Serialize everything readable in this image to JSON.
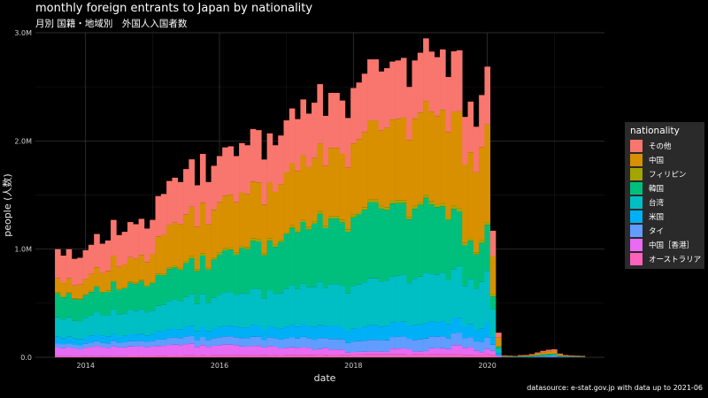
{
  "title": "monthly foreign entrants to Japan by nationality",
  "subtitle": "月別 国籍・地域別　外国人入国者数",
  "caption": "datasource: e-stat.gov.jp with data up to 2021-06",
  "colors": {
    "background": "#000000",
    "grid": "#333333",
    "series": [
      "#F8766D",
      "#D89000",
      "#A3A500",
      "#00BF7D",
      "#00BFC4",
      "#00B0F6",
      "#619CFF",
      "#E76BF3",
      "#FF62BC"
    ]
  },
  "chart_data": {
    "type": "area",
    "stacked": true,
    "xlabel": "date",
    "ylabel": "people (人数)",
    "x_ticks": [
      "2014",
      "2016",
      "2018",
      "2020"
    ],
    "y_ticks": [
      "0.0",
      "1.0M",
      "2.0M",
      "3.0M"
    ],
    "ylim": [
      0,
      3000000
    ],
    "xlim": [
      "2013-04",
      "2021-10"
    ],
    "grid": true,
    "legend": {
      "title": "nationality",
      "position": "right"
    },
    "x": [
      "2013-08",
      "2013-09",
      "2013-10",
      "2013-11",
      "2013-12",
      "2014-01",
      "2014-02",
      "2014-03",
      "2014-04",
      "2014-05",
      "2014-06",
      "2014-07",
      "2014-08",
      "2014-09",
      "2014-10",
      "2014-11",
      "2014-12",
      "2015-01",
      "2015-02",
      "2015-03",
      "2015-04",
      "2015-05",
      "2015-06",
      "2015-07",
      "2015-08",
      "2015-09",
      "2015-10",
      "2015-11",
      "2015-12",
      "2016-01",
      "2016-02",
      "2016-03",
      "2016-04",
      "2016-05",
      "2016-06",
      "2016-07",
      "2016-08",
      "2016-09",
      "2016-10",
      "2016-11",
      "2016-12",
      "2017-01",
      "2017-02",
      "2017-03",
      "2017-04",
      "2017-05",
      "2017-06",
      "2017-07",
      "2017-08",
      "2017-09",
      "2017-10",
      "2017-11",
      "2017-12",
      "2018-01",
      "2018-02",
      "2018-03",
      "2018-04",
      "2018-05",
      "2018-06",
      "2018-07",
      "2018-08",
      "2018-09",
      "2018-10",
      "2018-11",
      "2018-12",
      "2019-01",
      "2019-02",
      "2019-03",
      "2019-04",
      "2019-05",
      "2019-06",
      "2019-07",
      "2019-08",
      "2019-09",
      "2019-10",
      "2019-11",
      "2019-12",
      "2020-01",
      "2020-02",
      "2020-03",
      "2020-04",
      "2020-05",
      "2020-06",
      "2020-07",
      "2020-08",
      "2020-09",
      "2020-10",
      "2020-11",
      "2020-12",
      "2021-01",
      "2021-02",
      "2021-03",
      "2021-04",
      "2021-05",
      "2021-06"
    ],
    "totals": [
      1000000,
      940000,
      1000000,
      910000,
      920000,
      990000,
      1040000,
      1140000,
      1050000,
      1080000,
      1270000,
      1130000,
      1160000,
      1250000,
      1230000,
      1280000,
      1190000,
      1270000,
      1490000,
      1510000,
      1630000,
      1660000,
      1620000,
      1740000,
      1830000,
      1590000,
      1880000,
      1620000,
      1770000,
      1860000,
      1940000,
      1950000,
      1860000,
      1980000,
      1960000,
      2110000,
      2100000,
      1810000,
      2070000,
      1960000,
      2050000,
      2190000,
      2300000,
      2180000,
      2360000,
      2230000,
      2330000,
      2500000,
      2210000,
      2420000,
      2420000,
      2350000,
      2190000,
      2440000,
      2490000,
      2570000,
      2700000,
      2700000,
      2590000,
      2620000,
      2680000,
      2690000,
      2740000,
      2450000,
      2690000,
      2760000,
      2890000,
      2770000,
      2720000,
      2790000,
      2540000,
      2800000,
      2810000,
      2200000,
      2340000,
      2110000,
      2400000,
      2660000,
      1170000,
      230000,
      18000,
      15000,
      13000,
      20000,
      22000,
      30000,
      45000,
      60000,
      70000,
      75000,
      35000,
      22000,
      18000,
      15000,
      14000
    ],
    "series": [
      {
        "name": "その他",
        "share": [
          0.27,
          0.27,
          0.27,
          0.27,
          0.27,
          0.27,
          0.26,
          0.27,
          0.26,
          0.26,
          0.26,
          0.26,
          0.26,
          0.26,
          0.26,
          0.26,
          0.26,
          0.25,
          0.25,
          0.25,
          0.25,
          0.25,
          0.24,
          0.24,
          0.24,
          0.24,
          0.24,
          0.24,
          0.23,
          0.23,
          0.23,
          0.23,
          0.23,
          0.23,
          0.23,
          0.23,
          0.23,
          0.23,
          0.22,
          0.22,
          0.22,
          0.22,
          0.22,
          0.22,
          0.22,
          0.22,
          0.22,
          0.22,
          0.21,
          0.21,
          0.21,
          0.21,
          0.21,
          0.21,
          0.21,
          0.21,
          0.21,
          0.21,
          0.21,
          0.21,
          0.2,
          0.2,
          0.2,
          0.2,
          0.2,
          0.2,
          0.2,
          0.2,
          0.2,
          0.2,
          0.2,
          0.2,
          0.2,
          0.2,
          0.2,
          0.2,
          0.2,
          0.2,
          0.2,
          0.2,
          0.2,
          0.2,
          0.2,
          0.2,
          0.2,
          0.2,
          0.2,
          0.2,
          0.2,
          0.2,
          0.2,
          0.2,
          0.2,
          0.2,
          0.2
        ]
      },
      {
        "name": "中国",
        "share": [
          0.13,
          0.13,
          0.13,
          0.13,
          0.14,
          0.14,
          0.15,
          0.15,
          0.16,
          0.17,
          0.18,
          0.18,
          0.18,
          0.18,
          0.18,
          0.18,
          0.18,
          0.2,
          0.23,
          0.24,
          0.24,
          0.24,
          0.25,
          0.25,
          0.25,
          0.25,
          0.25,
          0.25,
          0.25,
          0.25,
          0.25,
          0.25,
          0.25,
          0.25,
          0.25,
          0.25,
          0.25,
          0.25,
          0.25,
          0.25,
          0.25,
          0.25,
          0.25,
          0.25,
          0.25,
          0.25,
          0.25,
          0.25,
          0.25,
          0.26,
          0.26,
          0.26,
          0.26,
          0.27,
          0.27,
          0.27,
          0.27,
          0.27,
          0.27,
          0.28,
          0.28,
          0.28,
          0.28,
          0.29,
          0.3,
          0.3,
          0.3,
          0.3,
          0.3,
          0.31,
          0.31,
          0.31,
          0.32,
          0.33,
          0.34,
          0.35,
          0.36,
          0.34,
          0.3,
          0.35,
          0.35,
          0.35,
          0.35,
          0.35,
          0.35,
          0.35,
          0.35,
          0.35,
          0.35,
          0.35,
          0.35,
          0.35,
          0.35,
          0.35,
          0.35
        ]
      },
      {
        "name": "フィリピン",
        "share": [
          0.01,
          0.01,
          0.01,
          0.01,
          0.01,
          0.01,
          0.01,
          0.01,
          0.01,
          0.01,
          0.01,
          0.01,
          0.01,
          0.01,
          0.01,
          0.01,
          0.01,
          0.01,
          0.01,
          0.01,
          0.01,
          0.01,
          0.01,
          0.01,
          0.01,
          0.01,
          0.01,
          0.01,
          0.01,
          0.01,
          0.01,
          0.01,
          0.01,
          0.01,
          0.01,
          0.01,
          0.01,
          0.01,
          0.01,
          0.01,
          0.01,
          0.01,
          0.01,
          0.01,
          0.01,
          0.01,
          0.01,
          0.01,
          0.01,
          0.01,
          0.01,
          0.01,
          0.01,
          0.01,
          0.01,
          0.01,
          0.01,
          0.01,
          0.01,
          0.01,
          0.01,
          0.01,
          0.01,
          0.01,
          0.01,
          0.01,
          0.01,
          0.01,
          0.01,
          0.01,
          0.01,
          0.01,
          0.01,
          0.01,
          0.01,
          0.01,
          0.01,
          0.01,
          0.02,
          0.02,
          0.02,
          0.02,
          0.02,
          0.02,
          0.02,
          0.02,
          0.02,
          0.02,
          0.02,
          0.02,
          0.02,
          0.02,
          0.02,
          0.02,
          0.02
        ]
      },
      {
        "name": "韓国",
        "share": [
          0.22,
          0.22,
          0.22,
          0.22,
          0.22,
          0.21,
          0.21,
          0.2,
          0.2,
          0.2,
          0.2,
          0.2,
          0.2,
          0.2,
          0.2,
          0.2,
          0.2,
          0.2,
          0.19,
          0.18,
          0.18,
          0.18,
          0.18,
          0.18,
          0.18,
          0.19,
          0.19,
          0.19,
          0.2,
          0.2,
          0.2,
          0.2,
          0.2,
          0.21,
          0.21,
          0.21,
          0.21,
          0.22,
          0.22,
          0.22,
          0.23,
          0.23,
          0.23,
          0.24,
          0.24,
          0.24,
          0.25,
          0.25,
          0.25,
          0.25,
          0.25,
          0.25,
          0.26,
          0.26,
          0.26,
          0.26,
          0.26,
          0.26,
          0.26,
          0.25,
          0.25,
          0.25,
          0.24,
          0.24,
          0.24,
          0.24,
          0.24,
          0.23,
          0.23,
          0.22,
          0.22,
          0.2,
          0.18,
          0.17,
          0.15,
          0.15,
          0.15,
          0.16,
          0.1,
          0.1,
          0.1,
          0.1,
          0.1,
          0.1,
          0.1,
          0.1,
          0.1,
          0.1,
          0.1,
          0.1,
          0.1,
          0.1,
          0.1,
          0.1,
          0.1
        ]
      },
      {
        "name": "台湾",
        "share": [
          0.18,
          0.18,
          0.18,
          0.18,
          0.18,
          0.18,
          0.18,
          0.18,
          0.18,
          0.18,
          0.18,
          0.18,
          0.18,
          0.18,
          0.18,
          0.18,
          0.18,
          0.17,
          0.16,
          0.16,
          0.16,
          0.16,
          0.16,
          0.16,
          0.16,
          0.16,
          0.16,
          0.16,
          0.16,
          0.16,
          0.16,
          0.16,
          0.16,
          0.16,
          0.16,
          0.16,
          0.16,
          0.16,
          0.16,
          0.16,
          0.16,
          0.16,
          0.16,
          0.16,
          0.16,
          0.16,
          0.16,
          0.16,
          0.16,
          0.16,
          0.16,
          0.16,
          0.16,
          0.16,
          0.16,
          0.16,
          0.16,
          0.16,
          0.16,
          0.16,
          0.16,
          0.16,
          0.16,
          0.16,
          0.16,
          0.16,
          0.16,
          0.16,
          0.16,
          0.16,
          0.16,
          0.16,
          0.17,
          0.17,
          0.18,
          0.18,
          0.18,
          0.18,
          0.22,
          0.15,
          0.15,
          0.15,
          0.15,
          0.15,
          0.15,
          0.15,
          0.15,
          0.15,
          0.15,
          0.15,
          0.15,
          0.15,
          0.15,
          0.15,
          0.15
        ]
      },
      {
        "name": "米国",
        "share": [
          0.06,
          0.06,
          0.06,
          0.06,
          0.06,
          0.06,
          0.06,
          0.06,
          0.06,
          0.06,
          0.05,
          0.05,
          0.05,
          0.05,
          0.05,
          0.05,
          0.05,
          0.05,
          0.05,
          0.05,
          0.05,
          0.05,
          0.05,
          0.05,
          0.05,
          0.05,
          0.05,
          0.05,
          0.05,
          0.05,
          0.05,
          0.05,
          0.05,
          0.05,
          0.05,
          0.05,
          0.05,
          0.05,
          0.05,
          0.05,
          0.05,
          0.05,
          0.05,
          0.05,
          0.05,
          0.05,
          0.05,
          0.05,
          0.05,
          0.05,
          0.05,
          0.05,
          0.05,
          0.05,
          0.05,
          0.05,
          0.05,
          0.05,
          0.05,
          0.05,
          0.05,
          0.05,
          0.05,
          0.05,
          0.05,
          0.05,
          0.05,
          0.05,
          0.05,
          0.05,
          0.05,
          0.05,
          0.05,
          0.05,
          0.05,
          0.05,
          0.05,
          0.05,
          0.06,
          0.07,
          0.07,
          0.07,
          0.07,
          0.07,
          0.07,
          0.07,
          0.07,
          0.07,
          0.07,
          0.07,
          0.07,
          0.07,
          0.07,
          0.07,
          0.07
        ]
      },
      {
        "name": "タイ",
        "share": [
          0.04,
          0.04,
          0.04,
          0.04,
          0.04,
          0.04,
          0.04,
          0.04,
          0.04,
          0.04,
          0.04,
          0.04,
          0.04,
          0.04,
          0.04,
          0.04,
          0.04,
          0.04,
          0.04,
          0.04,
          0.04,
          0.04,
          0.04,
          0.04,
          0.04,
          0.04,
          0.04,
          0.04,
          0.04,
          0.04,
          0.04,
          0.04,
          0.04,
          0.04,
          0.04,
          0.04,
          0.04,
          0.04,
          0.04,
          0.04,
          0.04,
          0.04,
          0.04,
          0.04,
          0.04,
          0.04,
          0.04,
          0.04,
          0.04,
          0.04,
          0.04,
          0.04,
          0.04,
          0.04,
          0.04,
          0.04,
          0.04,
          0.04,
          0.04,
          0.04,
          0.04,
          0.04,
          0.04,
          0.04,
          0.04,
          0.04,
          0.04,
          0.04,
          0.04,
          0.04,
          0.04,
          0.04,
          0.04,
          0.04,
          0.04,
          0.04,
          0.04,
          0.04,
          0.05,
          0.05,
          0.05,
          0.05,
          0.05,
          0.05,
          0.05,
          0.05,
          0.05,
          0.05,
          0.05,
          0.05,
          0.05,
          0.05,
          0.05,
          0.05,
          0.05
        ]
      },
      {
        "name": "中国［香港］",
        "share": [
          0.08,
          0.08,
          0.08,
          0.08,
          0.07,
          0.08,
          0.08,
          0.08,
          0.08,
          0.07,
          0.07,
          0.07,
          0.07,
          0.07,
          0.07,
          0.07,
          0.07,
          0.07,
          0.06,
          0.06,
          0.06,
          0.06,
          0.06,
          0.06,
          0.06,
          0.05,
          0.05,
          0.05,
          0.05,
          0.05,
          0.05,
          0.05,
          0.05,
          0.04,
          0.04,
          0.04,
          0.04,
          0.04,
          0.04,
          0.04,
          0.03,
          0.03,
          0.03,
          0.03,
          0.03,
          0.03,
          0.02,
          0.02,
          0.03,
          0.02,
          0.02,
          0.02,
          0.01,
          0.01,
          0.01,
          0.01,
          0.01,
          0.01,
          0.01,
          0.01,
          0.02,
          0.02,
          0.02,
          0.02,
          0.01,
          0.01,
          0.01,
          0.02,
          0.02,
          0.02,
          0.02,
          0.03,
          0.03,
          0.03,
          0.03,
          0.02,
          0.01,
          0.02,
          0.03,
          0.03,
          0.03,
          0.03,
          0.03,
          0.03,
          0.03,
          0.03,
          0.03,
          0.03,
          0.03,
          0.03,
          0.03,
          0.03,
          0.03,
          0.03,
          0.03
        ]
      },
      {
        "name": "オーストラリア",
        "share": [
          0.01,
          0.01,
          0.01,
          0.01,
          0.01,
          0.01,
          0.01,
          0.01,
          0.01,
          0.01,
          0.01,
          0.01,
          0.01,
          0.01,
          0.01,
          0.01,
          0.01,
          0.01,
          0.01,
          0.01,
          0.01,
          0.01,
          0.01,
          0.01,
          0.01,
          0.01,
          0.01,
          0.01,
          0.01,
          0.01,
          0.01,
          0.01,
          0.01,
          0.01,
          0.01,
          0.01,
          0.01,
          0.01,
          0.01,
          0.01,
          0.01,
          0.01,
          0.01,
          0.01,
          0.01,
          0.01,
          0.01,
          0.01,
          0.01,
          0.01,
          0.01,
          0.01,
          0.01,
          0.01,
          0.01,
          0.01,
          0.01,
          0.01,
          0.01,
          0.01,
          0.01,
          0.01,
          0.01,
          0.01,
          0.01,
          0.01,
          0.01,
          0.01,
          0.01,
          0.01,
          0.01,
          0.01,
          0.01,
          0.01,
          0.01,
          0.01,
          0.01,
          0.01,
          0.02,
          0.02,
          0.02,
          0.02,
          0.02,
          0.02,
          0.02,
          0.02,
          0.02,
          0.02,
          0.02,
          0.02,
          0.02,
          0.02,
          0.02,
          0.02,
          0.02
        ]
      }
    ]
  }
}
